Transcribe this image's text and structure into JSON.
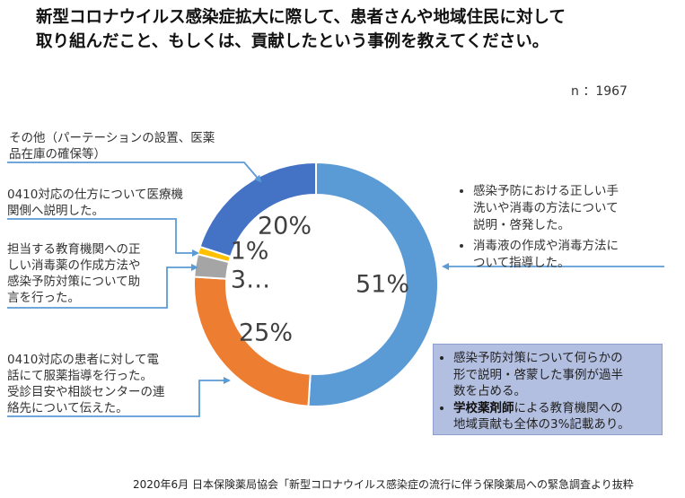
{
  "title_line1": "新型コロナウイルス感染症拡大に際して、患者さんや地域住民に対して",
  "title_line2": "取り組んだこと、もしくは、貢献したという事例を教えてください。",
  "n_label": "n ：1967",
  "chart_data": {
    "type": "donut",
    "slices": [
      {
        "label_text": "51%",
        "value": 51,
        "color": "#5b9bd5"
      },
      {
        "label_text": "25%",
        "value": 25,
        "color": "#ed7d31"
      },
      {
        "label_text": "3…",
        "value": 3,
        "color": "#a5a5a5"
      },
      {
        "label_text": "1%",
        "value": 1,
        "color": "#ffc000"
      },
      {
        "label_text": "20%",
        "value": 20,
        "color": "#4472c4"
      }
    ]
  },
  "annotations": {
    "other_l1": "その他（パーテーションの設置、医薬",
    "other_l2": "品在庫の確保等）",
    "med_l1": "0410対応の仕方について医療機",
    "med_l2": "関側へ説明した。",
    "edu_l1": "担当する教育機関への正",
    "edu_l2": "しい消毒薬の作成方法や",
    "edu_l3": "感染予防対策について助",
    "edu_l4": "言を行った。",
    "phone_l1": "0410対応の患者に対して電",
    "phone_l2": "話にて服薬指導を行った。",
    "phone_l3": "受診目安や相談センターの連",
    "phone_l4": "絡先について伝えた。"
  },
  "right_bullets": {
    "b1_l1": "感染予防における正しい手",
    "b1_l2": "洗いや消毒の方法について",
    "b1_l3": "説明・啓発した。",
    "b2_l1": "消毒液の作成や消毒方法に",
    "b2_l2": "ついて指導した。"
  },
  "summary": {
    "b1_l1": "感染予防対策について何らかの",
    "b1_l2": "形で説明・啓蒙した事例が過半",
    "b1_l3": "数を占める。",
    "b2_bold": "学校薬剤師",
    "b2_rest": "による教育機関への",
    "b2_l2": "地域貢献も全体の3%記載あり。"
  },
  "source": "2020年6月 日本保険薬局協会「新型コロナウイルス感染症の流行に伴う保険薬局への緊急調査より抜粋"
}
